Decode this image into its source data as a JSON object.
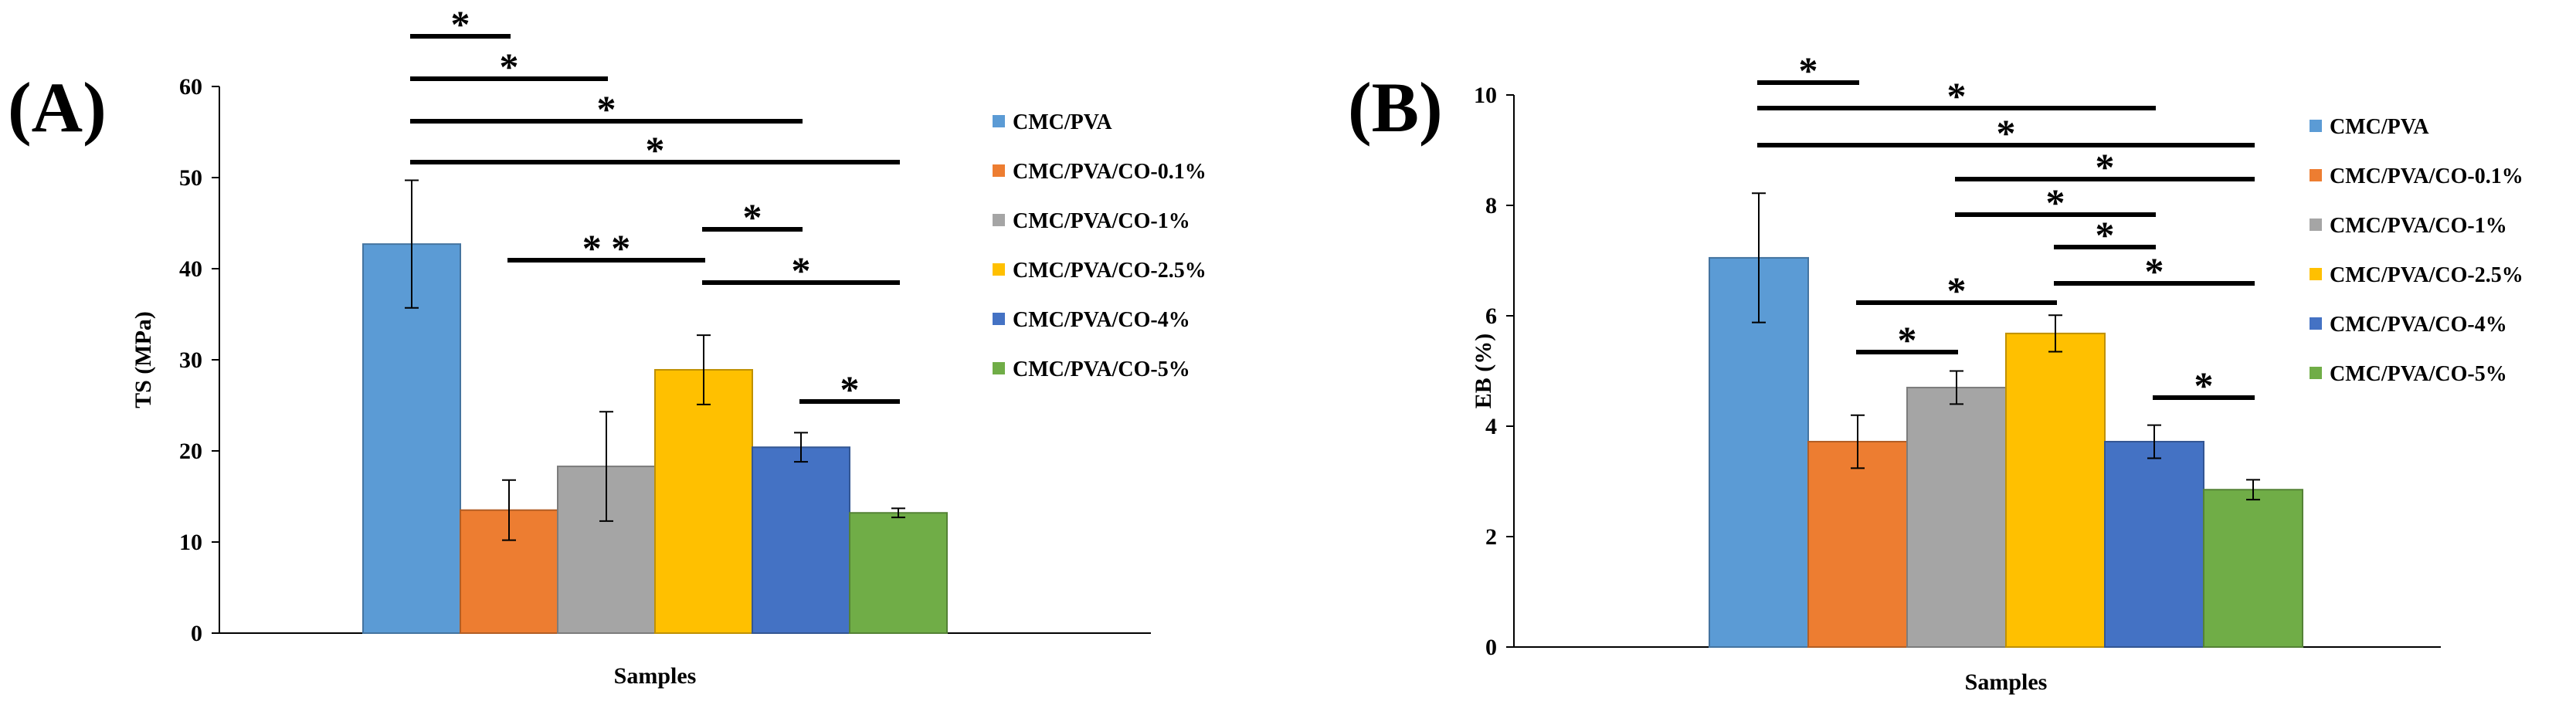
{
  "chart_data": [
    {
      "panel_label": "(A)",
      "type": "bar",
      "categories": [
        "CMC/PVA",
        "CMC/PVA/CO-0.1%",
        "CMC/PVA/CO-1%",
        "CMC/PVA/CO-2.5%",
        "CMC/PVA/CO-4%",
        "CMC/PVA/CO-5%"
      ],
      "values": [
        42.7,
        13.5,
        18.3,
        28.9,
        20.4,
        13.2
      ],
      "errors": [
        7.0,
        3.3,
        6.0,
        3.8,
        1.6,
        0.5
      ],
      "colors": [
        "#5b9bd5",
        "#ed7d31",
        "#a5a5a5",
        "#ffc000",
        "#4472c4",
        "#70ad47"
      ],
      "ylabel": "TS (MPa)",
      "xlabel": "Samples",
      "ylim": [
        0,
        60
      ],
      "yticks": [
        0,
        10,
        20,
        30,
        40,
        50,
        60
      ],
      "grid": false,
      "legend_position": "right",
      "significance": [
        {
          "from": 0,
          "to": 1,
          "label": "*"
        },
        {
          "from": 0,
          "to": 2,
          "label": "*"
        },
        {
          "from": 0,
          "to": 4,
          "label": "*"
        },
        {
          "from": 0,
          "to": 5,
          "label": "*"
        },
        {
          "from": 3,
          "to": 4,
          "label": "*"
        },
        {
          "from": 1,
          "to": 3,
          "label": "* *"
        },
        {
          "from": 3,
          "to": 5,
          "label": "*"
        },
        {
          "from": 4,
          "to": 5,
          "label": "*"
        }
      ]
    },
    {
      "panel_label": "(B)",
      "type": "bar",
      "categories": [
        "CMC/PVA",
        "CMC/PVA/CO-0.1%",
        "CMC/PVA/CO-1%",
        "CMC/PVA/CO-2.5%",
        "CMC/PVA/CO-4%",
        "CMC/PVA/CO-5%"
      ],
      "values": [
        7.05,
        3.72,
        4.7,
        5.68,
        3.72,
        2.85
      ],
      "errors": [
        1.17,
        0.48,
        0.3,
        0.33,
        0.3,
        0.18
      ],
      "colors": [
        "#5b9bd5",
        "#ed7d31",
        "#a5a5a5",
        "#ffc000",
        "#4472c4",
        "#70ad47"
      ],
      "ylabel": "EB (%)",
      "xlabel": "Samples",
      "ylim": [
        0,
        10
      ],
      "yticks": [
        0,
        2,
        4,
        6,
        8,
        10
      ],
      "grid": false,
      "legend_position": "right",
      "significance": [
        {
          "from": 0,
          "to": 1,
          "label": "*"
        },
        {
          "from": 0,
          "to": 4,
          "label": "*"
        },
        {
          "from": 0,
          "to": 5,
          "label": "*"
        },
        {
          "from": 2,
          "to": 5,
          "label": "*"
        },
        {
          "from": 2,
          "to": 4,
          "label": "*"
        },
        {
          "from": 3,
          "to": 4,
          "label": "*"
        },
        {
          "from": 3,
          "to": 5,
          "label": "*"
        },
        {
          "from": 1,
          "to": 3,
          "label": "*"
        },
        {
          "from": 1,
          "to": 2,
          "label": "*"
        },
        {
          "from": 4,
          "to": 5,
          "label": "*"
        }
      ]
    }
  ]
}
